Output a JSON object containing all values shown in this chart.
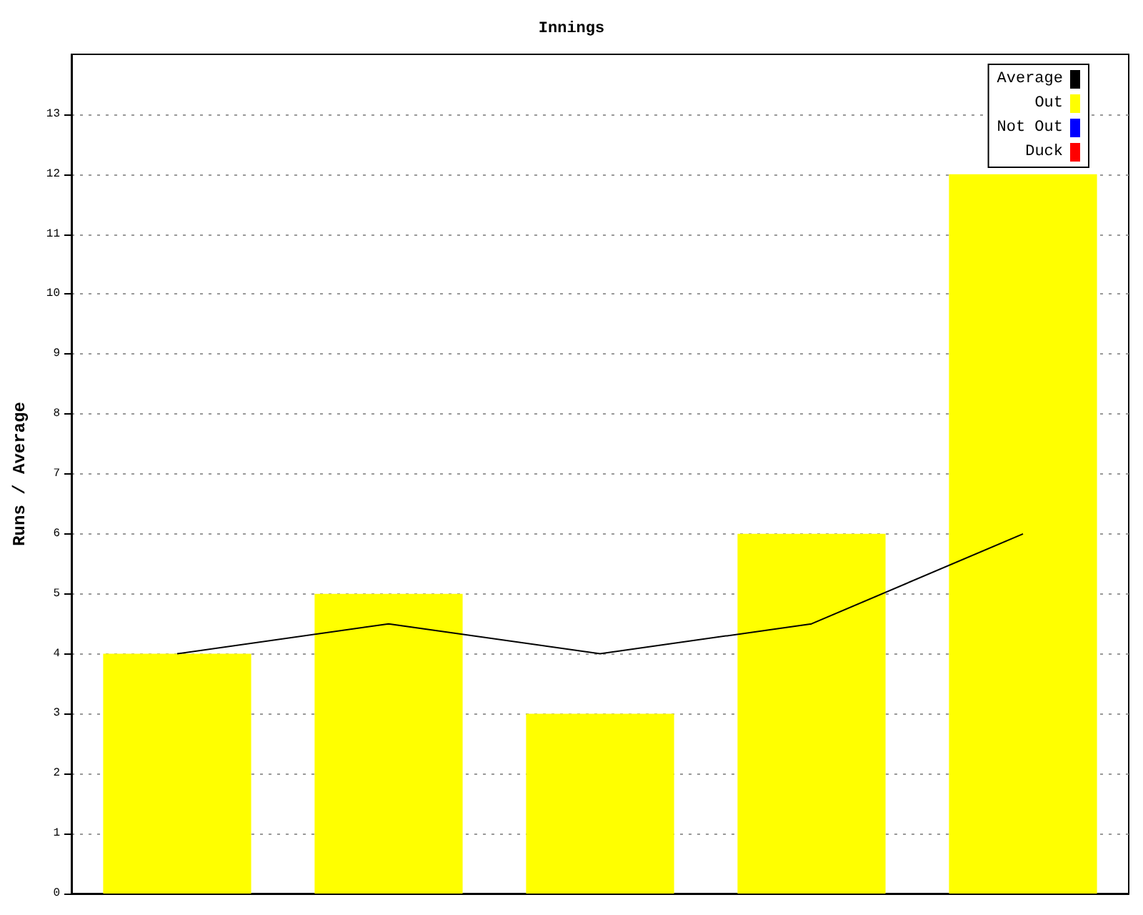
{
  "chart_data": {
    "type": "bar",
    "title": "Innings",
    "ylabel": "Runs / Average",
    "categories": [
      null,
      null,
      null,
      null,
      null
    ],
    "series": [
      {
        "name": "Average",
        "type": "line",
        "color": "#000000",
        "values": [
          4,
          4.5,
          4,
          4.5,
          6
        ],
        "marker": "none",
        "line_style": "solid"
      },
      {
        "name": "Out",
        "color": "#ffff00",
        "values": [
          4,
          5,
          3,
          6,
          12
        ]
      },
      {
        "name": "Not Out",
        "color": "#0000ff",
        "values": [
          null,
          null,
          null,
          null,
          null
        ]
      },
      {
        "name": "Duck",
        "color": "#ff0000",
        "values": [
          null,
          null,
          null,
          null,
          null
        ]
      }
    ],
    "stacked": true,
    "ylim": [
      0,
      14
    ],
    "yticks": [
      0,
      1,
      2,
      3,
      4,
      5,
      6,
      7,
      8,
      9,
      10,
      11,
      12,
      13
    ],
    "grid": "y",
    "legend": "top right"
  }
}
